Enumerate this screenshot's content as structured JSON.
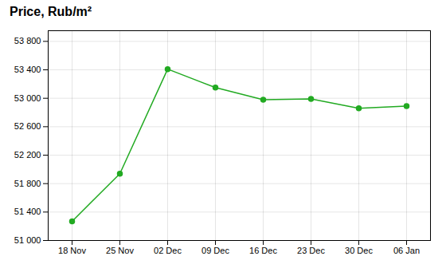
{
  "chart_data": {
    "type": "line",
    "title": "Price, Rub/m²",
    "categories": [
      "18 Nov",
      "25 Nov",
      "02 Dec",
      "09 Dec",
      "16 Dec",
      "23 Dec",
      "30 Dec",
      "06 Jan"
    ],
    "values": [
      51270,
      51940,
      53410,
      53150,
      52980,
      52990,
      52860,
      52890
    ],
    "color": "#22aa22",
    "marker": "circle",
    "ylim": [
      51000,
      53950
    ],
    "yticks": [
      {
        "value": 51000,
        "label": "51 000"
      },
      {
        "value": 51400,
        "label": "51 400"
      },
      {
        "value": 51800,
        "label": "51 800"
      },
      {
        "value": 52200,
        "label": "52 200"
      },
      {
        "value": 52600,
        "label": "52 600"
      },
      {
        "value": 53000,
        "label": "53 000"
      },
      {
        "value": 53400,
        "label": "53 400"
      },
      {
        "value": 53800,
        "label": "53 800"
      }
    ],
    "grid": true
  }
}
